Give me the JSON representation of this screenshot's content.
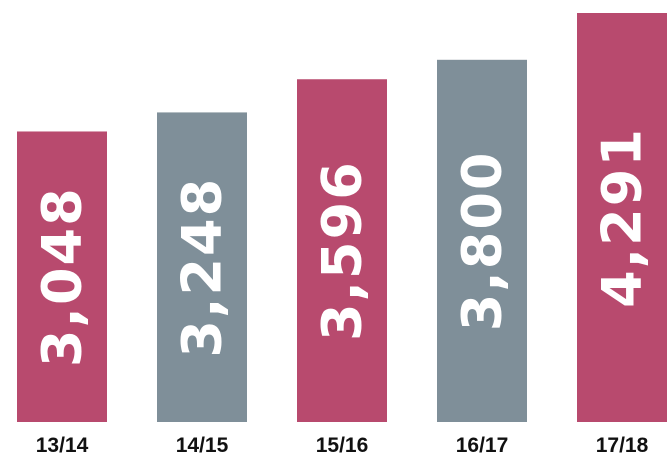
{
  "chart_data": {
    "type": "bar",
    "categories": [
      "13/14",
      "14/15",
      "15/16",
      "16/17",
      "17/18"
    ],
    "values": [
      3048,
      3248,
      3596,
      3800,
      4291
    ],
    "value_labels": [
      "3,048",
      "3,248",
      "3,596",
      "3,800",
      "4,291"
    ],
    "colors": [
      "#b84a6e",
      "#7f8f99",
      "#b84a6e",
      "#7f8f99",
      "#b84a6e"
    ]
  }
}
